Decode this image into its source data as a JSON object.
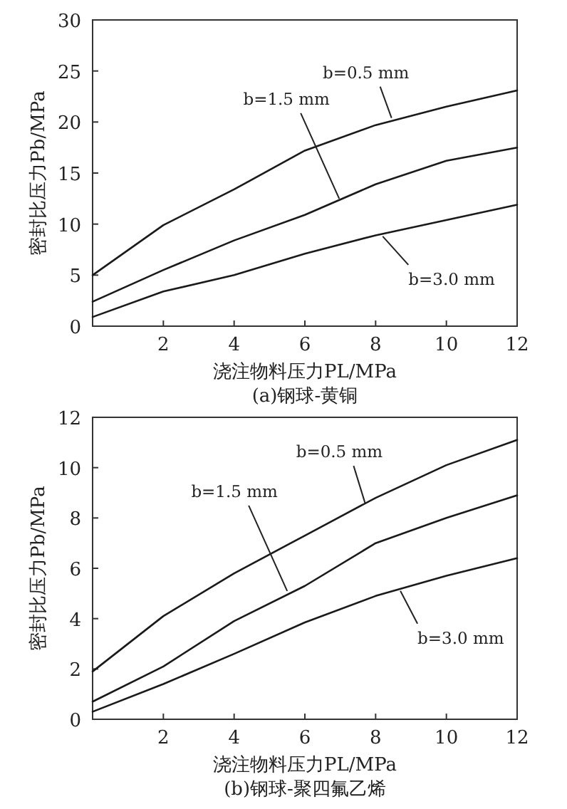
{
  "chart_data": [
    {
      "type": "line",
      "xlabel": "浇注物料压力PL/MPa",
      "ylabel": "密封比压力Pb/MPa",
      "xlim": [
        0,
        12
      ],
      "ylim": [
        0,
        30
      ],
      "xticks": [
        2,
        4,
        6,
        8,
        10,
        12
      ],
      "yticks": [
        0,
        5,
        10,
        15,
        20,
        25,
        30
      ],
      "x": [
        0,
        2,
        4,
        6,
        8,
        10,
        12
      ],
      "series": [
        {
          "color": "#1a1a1a",
          "values": [
            5.0,
            9.9,
            13.4,
            17.2,
            19.7,
            21.5,
            23.1
          ]
        },
        {
          "color": "#1a1a1a",
          "values": [
            2.4,
            5.5,
            8.4,
            10.9,
            13.9,
            16.2,
            17.5
          ]
        },
        {
          "color": "#1a1a1a",
          "values": [
            0.9,
            3.4,
            5.0,
            7.1,
            8.9,
            10.4,
            11.9
          ]
        }
      ],
      "annotations": [
        {
          "text": "b=0.5 mm",
          "x": 8.45,
          "y": 20.4
        },
        {
          "text": "b=1.5 mm",
          "x": 6.97,
          "y": 12.5
        },
        {
          "text": "b=3.0 mm",
          "x": 8.2,
          "y": 8.8
        },
        "(a)钢球-黄铜"
      ]
    },
    {
      "type": "line",
      "xlabel": "浇注物料压力PL/MPa",
      "ylabel": "密封比压力Pb/MPa",
      "xlim": [
        0,
        12
      ],
      "ylim": [
        0,
        12
      ],
      "xticks": [
        2,
        4,
        6,
        8,
        10,
        12
      ],
      "yticks": [
        0,
        2,
        4,
        6,
        8,
        10,
        12
      ],
      "x": [
        0,
        2,
        4,
        6,
        8,
        10,
        12
      ],
      "series": [
        {
          "color": "#1a1a1a",
          "values": [
            1.9,
            4.1,
            5.8,
            7.3,
            8.8,
            10.1,
            11.1
          ]
        },
        {
          "color": "#1a1a1a",
          "values": [
            0.7,
            2.1,
            3.9,
            5.3,
            7.0,
            8.0,
            8.9
          ]
        },
        {
          "color": "#1a1a1a",
          "values": [
            0.3,
            1.4,
            2.6,
            3.85,
            4.9,
            5.7,
            6.4
          ]
        }
      ],
      "annotations": [
        {
          "text": "b=0.5 mm",
          "x": 7.7,
          "y": 8.6
        },
        {
          "text": "b=1.5 mm",
          "x": 5.5,
          "y": 5.1
        },
        {
          "text": "b=3.0 mm",
          "x": 8.7,
          "y": 5.1
        },
        "(b)钢球-聚四氟乙烯"
      ]
    }
  ]
}
